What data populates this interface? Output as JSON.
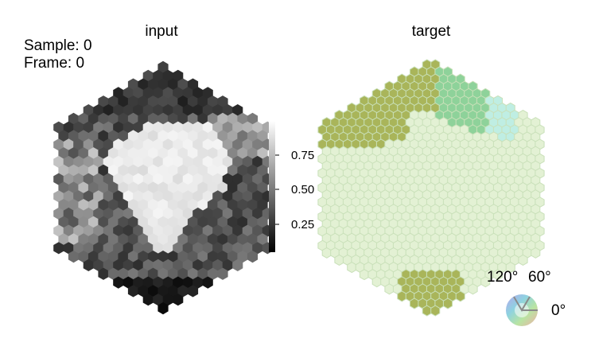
{
  "sample_label": "Sample: 0",
  "frame_label": "Frame: 0",
  "chart_data": [
    {
      "type": "heatmap",
      "title": "input",
      "colormap": "grayscale (black to white)",
      "colorbar": {
        "ticks": [
          0.25,
          0.5,
          0.75
        ],
        "tick_labels": [
          "0.25",
          "0.50",
          "0.75"
        ],
        "range": [
          0.05,
          0.95
        ]
      },
      "grid": "hexagonal lattice inside a hexagon"
    },
    {
      "type": "heatmap",
      "title": "target",
      "colorwheel_labels": [
        "120°",
        "60°",
        "0°"
      ],
      "colors": {
        "background_cells": "#e3f1d4",
        "olive": "#a9b55a",
        "green": "#8ed29a",
        "mint": "#bfeee3"
      },
      "grid": "hexagonal lattice inside a hexagon"
    }
  ]
}
